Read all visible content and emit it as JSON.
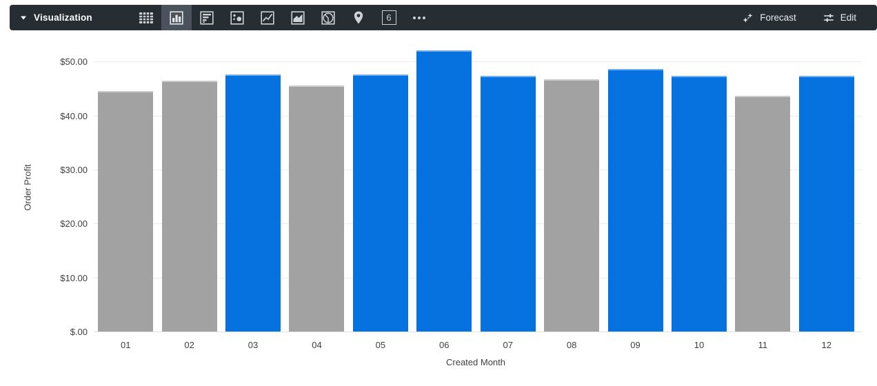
{
  "toolbar": {
    "background": "#262D33",
    "selected_background": "#4A535C",
    "caret_icon": "chevron-down-icon",
    "label": "Visualization",
    "viz_types": [
      {
        "name": "table",
        "selected": false
      },
      {
        "name": "column",
        "selected": true
      },
      {
        "name": "bar",
        "selected": false
      },
      {
        "name": "scatter",
        "selected": false
      },
      {
        "name": "line",
        "selected": false
      },
      {
        "name": "area",
        "selected": false
      },
      {
        "name": "pie",
        "selected": false
      },
      {
        "name": "map",
        "selected": false
      },
      {
        "name": "single-value",
        "selected": false,
        "glyph": "6"
      },
      {
        "name": "more",
        "selected": false
      }
    ],
    "actions": [
      {
        "label": "Forecast",
        "icon": "forecast-icon"
      },
      {
        "label": "Edit",
        "icon": "tune-icon"
      }
    ]
  },
  "chart_data": {
    "type": "bar",
    "title": "",
    "xlabel": "Created Month",
    "ylabel": "Order Profit",
    "categories": [
      "01",
      "02",
      "03",
      "04",
      "05",
      "06",
      "07",
      "08",
      "09",
      "10",
      "11",
      "12"
    ],
    "values": [
      44.5,
      46.5,
      47.6,
      45.5,
      47.6,
      52.1,
      47.3,
      46.7,
      48.6,
      47.3,
      43.7,
      47.3
    ],
    "bar_colors": [
      "gray",
      "gray",
      "blue",
      "gray",
      "blue",
      "blue",
      "blue",
      "gray",
      "blue",
      "blue",
      "gray",
      "blue"
    ],
    "colors": {
      "blue": "#0572E0",
      "gray": "#A2A2A2"
    },
    "ylim": [
      0,
      53.6
    ],
    "yticks": [
      {
        "value": 0,
        "label": "$.00"
      },
      {
        "value": 10,
        "label": "$10.00"
      },
      {
        "value": 20,
        "label": "$20.00"
      },
      {
        "value": 30,
        "label": "$30.00"
      },
      {
        "value": 40,
        "label": "$40.00"
      },
      {
        "value": 50,
        "label": "$50.00"
      }
    ],
    "grid": "horizontal",
    "legend": "none"
  }
}
